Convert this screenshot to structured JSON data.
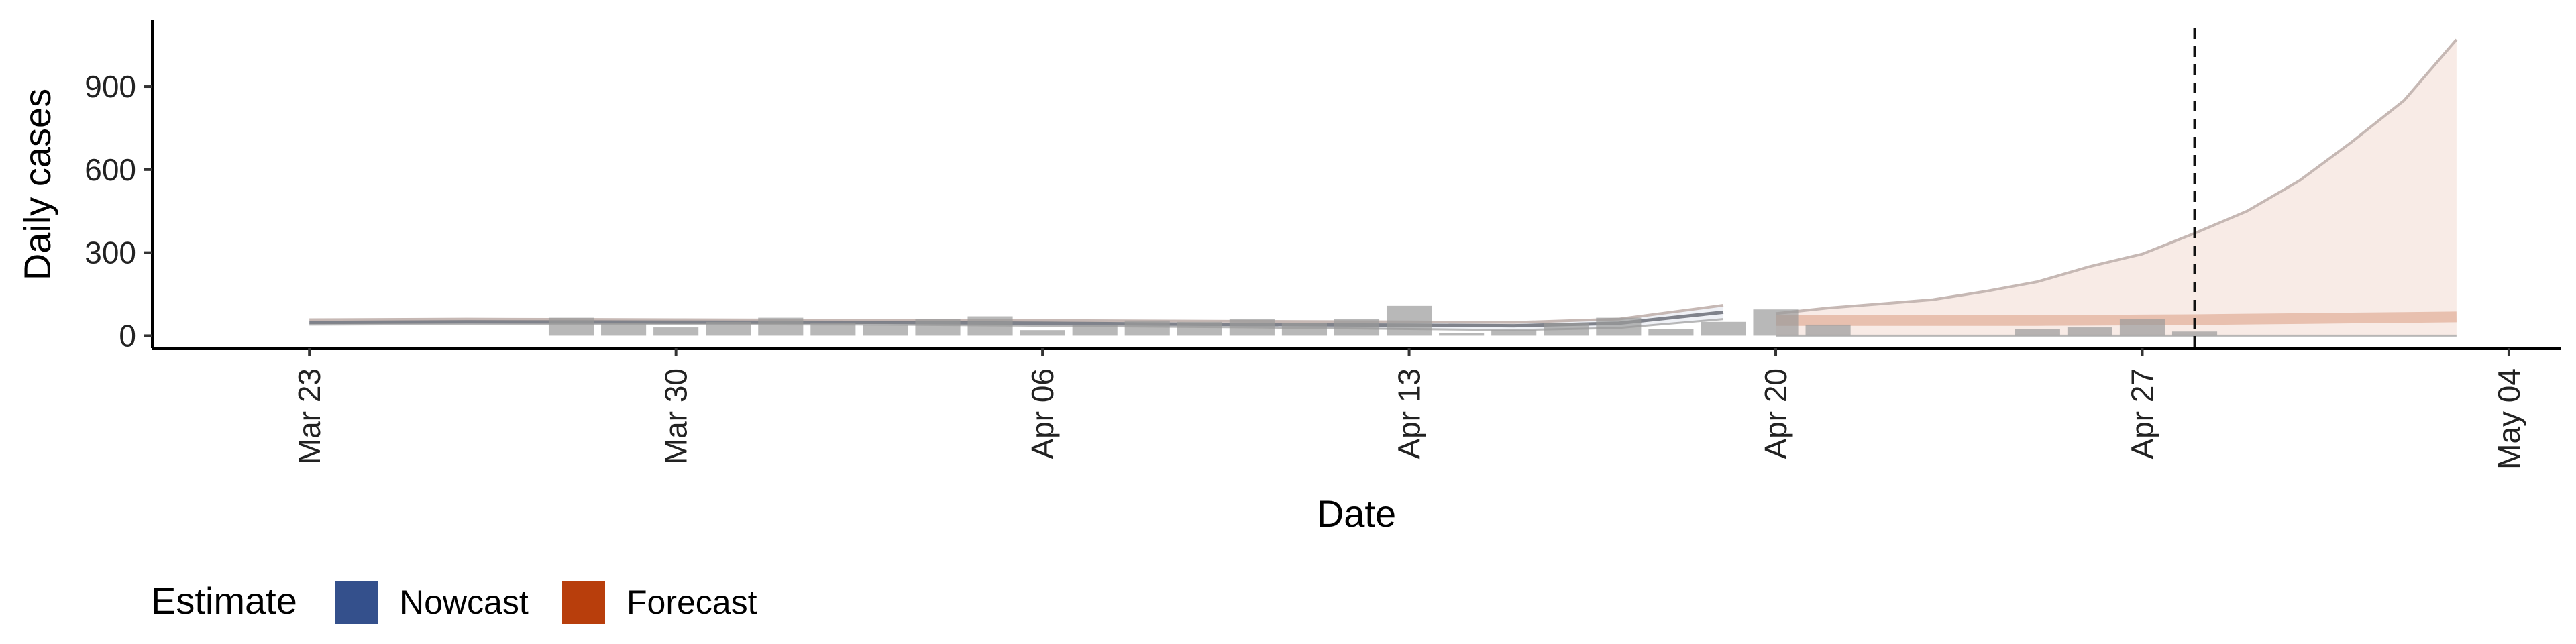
{
  "chart_data": {
    "type": "area",
    "xlabel": "Date",
    "ylabel": "Daily cases",
    "xlim": [
      "2020-03-20",
      "2020-05-05"
    ],
    "ylim": [
      -45,
      1140
    ],
    "y_ticks": [
      0,
      300,
      600,
      900
    ],
    "y_tick_labels": [
      "0",
      "300",
      "600",
      "900"
    ],
    "x_ticks": [
      "2020-03-23",
      "2020-03-30",
      "2020-04-06",
      "2020-04-13",
      "2020-04-20",
      "2020-04-27",
      "2020-05-04"
    ],
    "x_tick_labels": [
      "Mar 23",
      "Mar 30",
      "Apr 06",
      "Apr 13",
      "Apr 20",
      "Apr 27",
      "May 04"
    ],
    "forecast_start": "2020-04-28",
    "grid": false,
    "legend": {
      "title": "Estimate",
      "position": "bottom-left",
      "items": [
        {
          "label": "Nowcast",
          "color": "#34508c"
        },
        {
          "label": "Forecast",
          "color": "#b83e0c"
        }
      ]
    },
    "colors": {
      "nowcast": "#34508c",
      "forecast": "#b83e0c",
      "bars": "#9a9a9a",
      "axis": "#000000"
    },
    "reported_cases": {
      "dates": [
        "2020-03-28",
        "2020-03-29",
        "2020-03-30",
        "2020-03-31",
        "2020-04-01",
        "2020-04-02",
        "2020-04-03",
        "2020-04-04",
        "2020-04-05",
        "2020-04-06",
        "2020-04-07",
        "2020-04-08",
        "2020-04-09",
        "2020-04-10",
        "2020-04-11",
        "2020-04-12",
        "2020-04-13",
        "2020-04-14",
        "2020-04-15",
        "2020-04-16",
        "2020-04-17",
        "2020-04-18",
        "2020-04-19",
        "2020-04-20",
        "2020-04-21",
        "2020-04-25",
        "2020-04-26",
        "2020-04-27",
        "2020-04-28"
      ],
      "values": [
        65,
        45,
        30,
        50,
        65,
        45,
        40,
        60,
        70,
        20,
        40,
        55,
        50,
        60,
        45,
        60,
        108,
        10,
        20,
        45,
        65,
        25,
        50,
        95,
        40,
        25,
        30,
        60,
        15
      ]
    },
    "series": [
      {
        "name": "Nowcast",
        "dates": [
          "2020-03-23",
          "2020-03-26",
          "2020-03-30",
          "2020-04-03",
          "2020-04-06",
          "2020-04-10",
          "2020-04-13",
          "2020-04-15",
          "2020-04-17",
          "2020-04-19"
        ],
        "median": [
          48,
          50,
          49,
          48,
          45,
          40,
          38,
          36,
          45,
          85
        ],
        "lower": [
          40,
          42,
          42,
          40,
          36,
          30,
          24,
          20,
          28,
          60
        ],
        "upper": [
          58,
          60,
          58,
          56,
          55,
          52,
          50,
          48,
          60,
          110
        ]
      },
      {
        "name": "Forecast",
        "dates": [
          "2020-04-20",
          "2020-04-21",
          "2020-04-22",
          "2020-04-23",
          "2020-04-24",
          "2020-04-25",
          "2020-04-26",
          "2020-04-27",
          "2020-04-28",
          "2020-04-29",
          "2020-04-30",
          "2020-05-01",
          "2020-05-02",
          "2020-05-03"
        ],
        "median": [
          55,
          55,
          55,
          55,
          55,
          55,
          56,
          57,
          58,
          60,
          62,
          64,
          66,
          68
        ],
        "lower": [
          0,
          0,
          0,
          0,
          0,
          0,
          0,
          0,
          0,
          0,
          0,
          0,
          0,
          0
        ],
        "upper": [
          80,
          100,
          115,
          130,
          160,
          195,
          250,
          295,
          370,
          450,
          560,
          700,
          850,
          1070
        ]
      }
    ]
  }
}
